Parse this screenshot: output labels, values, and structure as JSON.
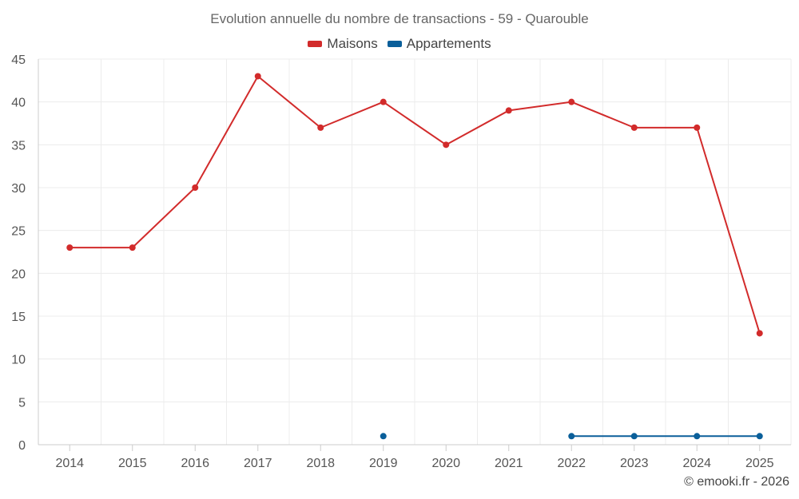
{
  "chart_data": {
    "type": "line",
    "title": "Evolution annuelle du nombre de transactions - 59 - Quarouble",
    "categories": [
      "2014",
      "2015",
      "2016",
      "2017",
      "2018",
      "2019",
      "2020",
      "2021",
      "2022",
      "2023",
      "2024",
      "2025"
    ],
    "series": [
      {
        "name": "Maisons",
        "color": "#d22b2b",
        "values": [
          23,
          23,
          30,
          43,
          37,
          40,
          35,
          39,
          40,
          37,
          37,
          13
        ]
      },
      {
        "name": "Appartements",
        "color": "#0a5f9a",
        "values": [
          null,
          null,
          null,
          null,
          null,
          1,
          null,
          null,
          1,
          1,
          1,
          1
        ]
      }
    ],
    "yticks": [
      0,
      5,
      10,
      15,
      20,
      25,
      30,
      35,
      40,
      45
    ],
    "ylim": [
      0,
      45
    ],
    "xlabel": "",
    "ylabel": "",
    "grid": true,
    "legend_position": "top-center"
  },
  "credit": "© emooki.fr - 2026"
}
